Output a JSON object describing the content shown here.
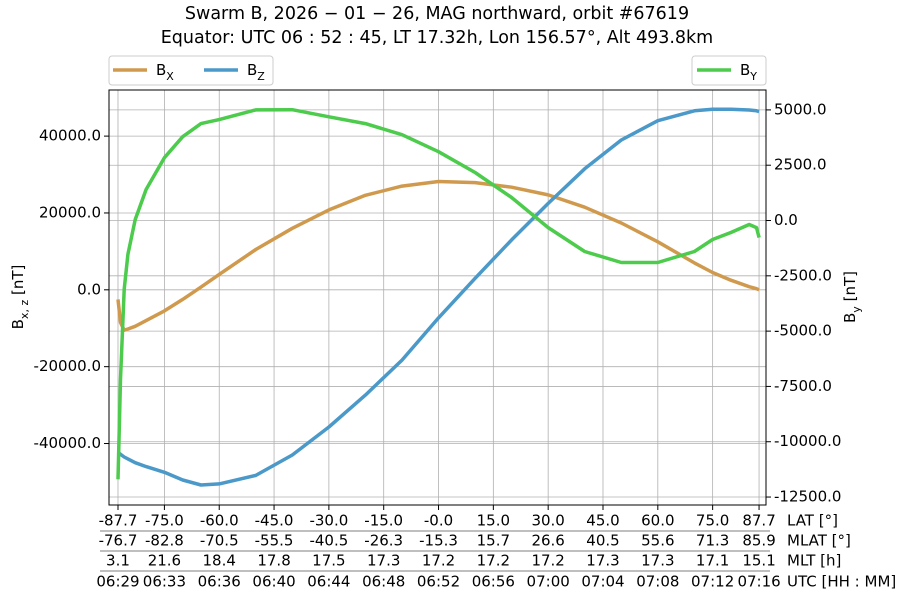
{
  "chart_data": {
    "type": "line",
    "title": "Swarm B,  2026 − 01 − 26,  MAG northward,  orbit #67619",
    "subtitle": "Equator:  UTC 06 : 52 : 45,  LT 17.32h,  Lon 156.57°,  Alt 493.8km",
    "ylabel": [
      "B",
      "x, z",
      " [nT]"
    ],
    "y2label": [
      "B",
      "y",
      " [nT]"
    ],
    "xlabel": "LAT [°]",
    "x": [
      -87.7,
      -87,
      -86,
      -85,
      -83,
      -80,
      -75,
      -70,
      -65,
      -60,
      -50,
      -40,
      -30,
      -20,
      -10,
      0,
      10,
      20,
      30,
      40,
      50,
      60,
      70,
      75,
      80,
      85,
      87,
      87.7
    ],
    "series": [
      {
        "name": "B",
        "subscript": "X",
        "color": "#d09a4e",
        "axis": "y",
        "values": [
          -2500,
          -8500,
          -10500,
          -10200,
          -9500,
          -8000,
          -5500,
          -2500,
          700,
          4000,
          10500,
          16000,
          20800,
          24600,
          27000,
          28200,
          27900,
          26700,
          24700,
          21500,
          17400,
          12500,
          7000,
          4500,
          2500,
          800,
          300,
          0
        ]
      },
      {
        "name": "B",
        "subscript": "Z",
        "color": "#4b99c9",
        "axis": "y",
        "values": [
          -42200,
          -42800,
          -43500,
          -44000,
          -45000,
          -46000,
          -47500,
          -49500,
          -50800,
          -50500,
          -48300,
          -43000,
          -35700,
          -27400,
          -18300,
          -7300,
          3000,
          13000,
          22500,
          31500,
          39000,
          44000,
          46600,
          47000,
          47000,
          46800,
          46600,
          46400
        ]
      },
      {
        "name": "B",
        "subscript": "Y",
        "color": "#4ccb4c",
        "axis": "y2",
        "values": [
          -11700,
          -7170,
          -3110,
          -1530,
          40,
          1400,
          2840,
          3790,
          4380,
          4560,
          5000,
          5010,
          4690,
          4380,
          3880,
          3110,
          2170,
          1040,
          -320,
          -1400,
          -1900,
          -1900,
          -1400,
          -860,
          -540,
          -180,
          -320,
          -770
        ]
      }
    ],
    "xlim": [
      -90.16,
      89.6
    ],
    "ylim": [
      -56000,
      52000
    ],
    "y2lim": [
      -12860,
      5900
    ],
    "xticks": [
      -87.7,
      {
        "value": -75,
        "label": "-75.0"
      },
      {
        "value": -60,
        "label": "-60.0"
      },
      {
        "value": -45,
        "label": "-45.0"
      },
      {
        "value": -30,
        "label": "-30.0"
      },
      {
        "value": -15,
        "label": "-15.0"
      },
      {
        "value": 0,
        "label": "-0.0"
      },
      {
        "value": 15,
        "label": "15.0"
      },
      {
        "value": 30,
        "label": "30.0"
      },
      {
        "value": 45,
        "label": "45.0"
      },
      {
        "value": 60,
        "label": "60.0"
      },
      {
        "value": 75,
        "label": "75.0"
      },
      87.7
    ],
    "xtick_rows": [
      {
        "name": "MLAT [°]",
        "labels": [
          "-76.7",
          "-82.8",
          "-70.5",
          "-55.5",
          "-40.5",
          "-26.3",
          "-15.3",
          "15.7",
          "26.6",
          "40.5",
          "55.6",
          "71.3",
          "85.9"
        ]
      },
      {
        "name": "MLT [h]",
        "labels": [
          "3.1",
          "21.6",
          "18.4",
          "17.8",
          "17.5",
          "17.3",
          "17.2",
          "17.2",
          "17.2",
          "17.3",
          "17.3",
          "17.1",
          "15.1"
        ]
      },
      {
        "name": "UTC [HH : MM]",
        "labels": [
          "06:29",
          "06:33",
          "06:36",
          "06:40",
          "06:44",
          "06:48",
          "06:52",
          "06:56",
          "07:00",
          "07:04",
          "07:08",
          "07:12",
          "07:16"
        ]
      }
    ],
    "yticks": [
      {
        "value": -40000,
        "label": "-40000.0"
      },
      {
        "value": -20000,
        "label": "-20000.0"
      },
      {
        "value": 0,
        "label": "0.0"
      },
      {
        "value": 20000,
        "label": "20000.0"
      },
      {
        "value": 40000,
        "label": "40000.0"
      }
    ],
    "y2ticks": [
      {
        "value": -12500,
        "label": "-12500.0"
      },
      {
        "value": -10000,
        "label": "-10000.0"
      },
      {
        "value": -7500,
        "label": "-7500.0"
      },
      {
        "value": -5000,
        "label": "-5000.0"
      },
      {
        "value": -2500,
        "label": "-2500.0"
      },
      {
        "value": 0,
        "label": "0.0"
      },
      {
        "value": 2500,
        "label": "2500.0"
      },
      {
        "value": 5000,
        "label": "5000.0"
      }
    ],
    "grid": true
  }
}
